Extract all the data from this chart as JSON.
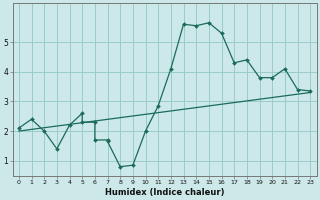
{
  "xlabel": "Humidex (Indice chaleur)",
  "bg_color": "#cce8e8",
  "grid_color": "#99cccc",
  "line_color": "#1a6b5a",
  "x": [
    0,
    1,
    2,
    3,
    4,
    5,
    5,
    6,
    6,
    7,
    7,
    8,
    9,
    10,
    11,
    12,
    13,
    14,
    15,
    16,
    17,
    18,
    19,
    20,
    21,
    22,
    23
  ],
  "y": [
    2.1,
    2.4,
    2.0,
    1.4,
    2.2,
    2.6,
    2.3,
    2.3,
    1.7,
    1.7,
    1.65,
    0.8,
    0.85,
    2.0,
    2.85,
    4.1,
    5.6,
    5.55,
    5.65,
    5.3,
    4.3,
    4.4,
    3.8,
    3.8,
    4.1,
    3.4,
    3.35
  ],
  "trend_x": [
    0,
    23
  ],
  "trend_y": [
    2.0,
    3.3
  ],
  "ylim": [
    0.5,
    6.3
  ],
  "xlim": [
    -0.5,
    23.5
  ],
  "yticks": [
    1,
    2,
    3,
    4,
    5
  ],
  "xticks": [
    0,
    1,
    2,
    3,
    4,
    5,
    6,
    7,
    8,
    9,
    10,
    11,
    12,
    13,
    14,
    15,
    16,
    17,
    18,
    19,
    20,
    21,
    22,
    23
  ],
  "xtick_labels": [
    "0",
    "1",
    "2",
    "3",
    "4",
    "5",
    "6",
    "7",
    "8",
    "9",
    "10",
    "11",
    "12",
    "13",
    "14",
    "15",
    "16",
    "17",
    "18",
    "19",
    "20",
    "21",
    "22",
    "23"
  ],
  "ytick_labels": [
    "1",
    "2",
    "3",
    "4",
    "5"
  ]
}
